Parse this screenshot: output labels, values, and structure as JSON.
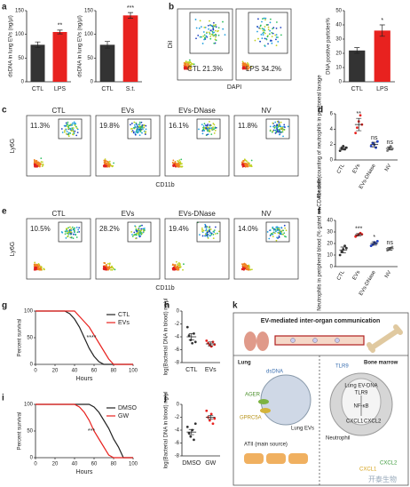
{
  "panels": [
    "a",
    "b",
    "c",
    "d",
    "e",
    "f",
    "g",
    "h",
    "i",
    "j",
    "k"
  ],
  "chart_data": [
    {
      "type": "bar",
      "ylabel": "dsDNA in lung EVs (ng/μl)",
      "categories": [
        "CTL",
        "LPS"
      ],
      "values": [
        78,
        105
      ],
      "errors": [
        6,
        4
      ],
      "colors": [
        "#333333",
        "#e8221f"
      ],
      "ylim": [
        0,
        150
      ],
      "yticks": [
        0,
        50,
        100,
        150
      ],
      "annotations": [
        null,
        "**"
      ]
    },
    {
      "type": "bar",
      "ylabel": "dsDNA in lung EVs (ng/μl)",
      "categories": [
        "CTL",
        "S.t."
      ],
      "values": [
        78,
        140
      ],
      "errors": [
        7,
        6
      ],
      "colors": [
        "#333333",
        "#e8221f"
      ],
      "ylim": [
        0,
        150
      ],
      "yticks": [
        0,
        50,
        100,
        150
      ],
      "annotations": [
        null,
        "***"
      ]
    },
    {
      "type": "bar",
      "ylabel": "DNA positive particles%",
      "categories": [
        "CTL",
        "LPS"
      ],
      "values": [
        22,
        36
      ],
      "errors": [
        2,
        4
      ],
      "colors": [
        "#333333",
        "#e8221f"
      ],
      "ylim": [
        0,
        50
      ],
      "yticks": [
        0,
        10,
        20,
        30,
        40,
        50
      ],
      "annotations": [
        null,
        "*"
      ]
    },
    {
      "type": "dot",
      "ylabel": "Absolute counting of neutrophils in peritoneal lavage",
      "categories": [
        "CTL",
        "EVs",
        "EVs-DNase",
        "NV"
      ],
      "points": [
        [
          1.2,
          1.5,
          1.8,
          1.4,
          1.6
        ],
        [
          3.5,
          4.2,
          5.0,
          5.8,
          4.6
        ],
        [
          1.8,
          2.2,
          2.0,
          1.6,
          2.4
        ],
        [
          1.2,
          1.5,
          1.8,
          1.4
        ]
      ],
      "values": [
        1.5,
        4.6,
        2.0,
        1.5
      ],
      "errors": [
        0.2,
        0.8,
        0.3,
        0.2
      ],
      "colors": [
        "#333333",
        "#e8221f",
        "#1f3fc4",
        "#888888"
      ],
      "ylim": [
        0,
        6
      ],
      "yticks": [
        0,
        2,
        4,
        6
      ],
      "annotations": [
        null,
        "**",
        "ns",
        "ns"
      ]
    },
    {
      "type": "dot",
      "ylabel": "Neutrophils in peripheral blood (% gated on CD45+ cells)",
      "categories": [
        "CTL",
        "EVs",
        "EVs-DNase",
        "NV"
      ],
      "points": [
        [
          10,
          13,
          15,
          18,
          16
        ],
        [
          26,
          27,
          28,
          29,
          28
        ],
        [
          18,
          19,
          21,
          20,
          22
        ],
        [
          14,
          15,
          16,
          17
        ]
      ],
      "values": [
        14.4,
        27.6,
        20,
        15.5
      ],
      "errors": [
        2.5,
        1,
        1.5,
        1.2
      ],
      "colors": [
        "#333333",
        "#e8221f",
        "#1f3fc4",
        "#888888"
      ],
      "ylim": [
        0,
        40
      ],
      "yticks": [
        0,
        10,
        20,
        30,
        40
      ],
      "annotations": [
        null,
        "***",
        "*",
        "ns"
      ]
    },
    {
      "type": "line",
      "xlabel": "Hours",
      "ylabel": "Percent survival",
      "x": [
        0,
        30,
        35,
        40,
        45,
        50,
        55,
        60,
        65,
        70,
        75,
        80,
        100
      ],
      "series": [
        {
          "name": "CTL",
          "color": "#222222",
          "values": [
            100,
            100,
            95,
            85,
            70,
            50,
            30,
            15,
            5,
            0,
            0,
            0,
            0
          ]
        },
        {
          "name": "EVs",
          "color": "#e8221f",
          "values": [
            100,
            100,
            100,
            100,
            90,
            80,
            70,
            55,
            40,
            25,
            10,
            0,
            0
          ]
        }
      ],
      "xlim": [
        0,
        100
      ],
      "ylim": [
        0,
        100
      ],
      "xticks": [
        0,
        20,
        40,
        60,
        80,
        100
      ],
      "yticks": [
        0,
        50,
        100
      ],
      "annotation": "****",
      "legend": "top-right"
    },
    {
      "type": "dot",
      "ylabel": "log(Bacterial DNA in blood) ng/μl",
      "categories": [
        "CTL",
        "EVs"
      ],
      "points": [
        [
          -2.5,
          -3.8,
          -4.5,
          -5.0,
          -3.5,
          -4.8
        ],
        [
          -4.6,
          -5.0,
          -5.3,
          -5.5,
          -4.8,
          -5.2
        ]
      ],
      "values": [
        -4.0,
        -5.1
      ],
      "errors": [
        0.5,
        0.3
      ],
      "colors": [
        "#333333",
        "#e8221f"
      ],
      "ylim": [
        -8,
        0
      ],
      "yticks": [
        -8,
        -6,
        -4,
        -2,
        0
      ],
      "annotations": [
        null,
        null
      ]
    },
    {
      "type": "line",
      "xlabel": "Hours",
      "ylabel": "Percent survival",
      "x": [
        0,
        40,
        45,
        50,
        55,
        60,
        65,
        70,
        75,
        80,
        85,
        90,
        100
      ],
      "series": [
        {
          "name": "DMSO",
          "color": "#222222",
          "values": [
            100,
            100,
            100,
            100,
            100,
            95,
            85,
            70,
            55,
            35,
            20,
            0,
            0
          ]
        },
        {
          "name": "GW",
          "color": "#e8221f",
          "values": [
            100,
            100,
            95,
            85,
            70,
            50,
            35,
            20,
            5,
            0,
            0,
            0,
            0
          ]
        }
      ],
      "xlim": [
        0,
        100
      ],
      "ylim": [
        0,
        100
      ],
      "xticks": [
        0,
        20,
        40,
        60,
        80,
        100
      ],
      "yticks": [
        0,
        50,
        100
      ],
      "annotation": "***",
      "legend": "top-right"
    },
    {
      "type": "dot",
      "ylabel": "log(Bacterial DNA in blood) ng/μl",
      "categories": [
        "DMSO",
        "GW"
      ],
      "points": [
        [
          -3.5,
          -4.5,
          -5,
          -4,
          -5.5,
          -3
        ],
        [
          -1,
          -2,
          -2.5,
          -1.5,
          -3,
          -2.2
        ]
      ],
      "values": [
        -4.3,
        -2.0
      ],
      "errors": [
        0.4,
        0.3
      ],
      "colors": [
        "#333333",
        "#e8221f"
      ],
      "ylim": [
        -8,
        0
      ],
      "yticks": [
        -8,
        -6,
        -4,
        -2,
        0
      ],
      "annotations": [
        null,
        null
      ]
    }
  ],
  "flow_b": {
    "ylabel": "DiI",
    "xlabel": "DAPI",
    "plots": [
      {
        "label": "CTL 21.3%"
      },
      {
        "label": "LPS 34.2%"
      }
    ]
  },
  "flow_c": {
    "ylabel": "Ly6G",
    "xlabel": "CD11b",
    "plots": [
      {
        "title": "CTL",
        "gate": "11.3%"
      },
      {
        "title": "EVs",
        "gate": "19.8%"
      },
      {
        "title": "EVs-DNase",
        "gate": "16.1%"
      },
      {
        "title": "NV",
        "gate": "11.8%"
      }
    ]
  },
  "flow_e": {
    "ylabel": "Ly6G",
    "xlabel": "CD11b",
    "plots": [
      {
        "title": "CTL",
        "gate": "10.5%"
      },
      {
        "title": "EVs",
        "gate": "28.2%"
      },
      {
        "title": "EVs-DNase",
        "gate": "19.4%"
      },
      {
        "title": "NV",
        "gate": "14.0%"
      }
    ]
  },
  "diagram": {
    "title": "EV-mediated inter-organ communication",
    "lung": "Lung",
    "marrow": "Bone marrow",
    "dsdna": "dsDNA",
    "ager": "AGER",
    "gprc5a": "GPRC5A",
    "lung_evs": "Lung EVs",
    "atii": "ATII (main source)",
    "tlr9_top": "TLR9",
    "ev_dna": "Lung EV-DNA",
    "tlr9": "TLR9",
    "nfkb": "NF-κB",
    "cxcl1_in": "CXCL1",
    "cxcl2_in": "CXCL2",
    "neutrophil": "Neutrophil",
    "cxcl1_out": "CXCL1",
    "cxcl2_out": "CXCL2"
  },
  "watermark": "开泰生物"
}
